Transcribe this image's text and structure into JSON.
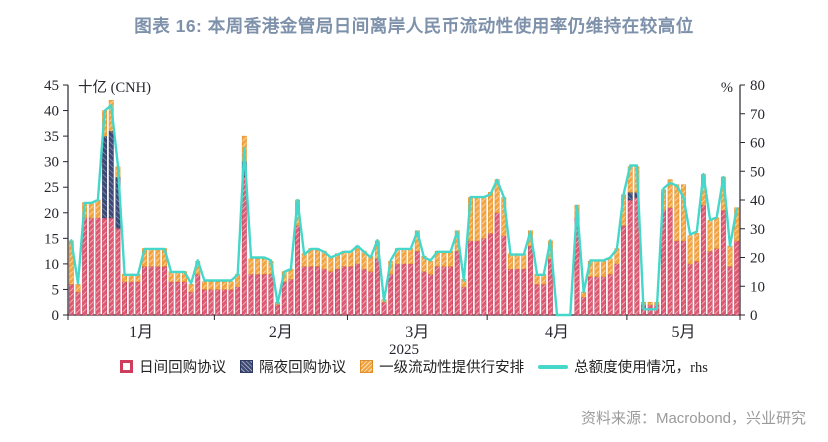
{
  "header": {
    "title": "图表 16: 本周香港金管局日间离岸人民币流动性使用率仍维持在较高位"
  },
  "source": {
    "text": "资料来源：Macrobond，兴业研究"
  },
  "legend": [
    {
      "label": "日间回购协议",
      "color": "#cf3d5c"
    },
    {
      "label": "隔夜回购协议",
      "color": "#3e4a75"
    },
    {
      "label": "一级流动性提供行安排",
      "color": "#f3a440"
    },
    {
      "label": "总额度使用情况，rhs",
      "color": "#45d7c9"
    }
  ],
  "chart_data": {
    "type": "bar",
    "subtype": "stacked-bars-with-line",
    "title": "图表 16: 本周香港金管局日间离岸人民币流动性使用率仍维持在较高位",
    "left_axis": {
      "label": "十亿 (CNH)",
      "min": 0,
      "max": 45,
      "ticks": [
        45,
        40,
        35,
        30,
        25,
        20,
        15,
        10,
        5,
        0
      ]
    },
    "right_axis": {
      "label": "%",
      "min": 0,
      "max": 80,
      "ticks": [
        80,
        70,
        60,
        50,
        40,
        30,
        20,
        10,
        0
      ]
    },
    "x_axis": {
      "year": "2025",
      "month_labels": [
        "1月",
        "2月",
        "3月",
        "4月",
        "5月"
      ],
      "month_counts": [
        22,
        20,
        21,
        21,
        17
      ]
    },
    "series": [
      {
        "name": "日间回购协议",
        "color": "#dd5a72",
        "values": [
          6,
          4.5,
          19,
          19,
          19,
          19,
          19,
          17,
          6.5,
          6.5,
          6.5,
          9.5,
          9.5,
          9.5,
          9.5,
          6.5,
          6.5,
          6.5,
          4.5,
          8,
          5,
          5,
          5,
          5,
          5,
          5.5,
          27,
          8,
          8,
          8,
          8,
          2,
          6.5,
          7,
          17.5,
          9.5,
          9.5,
          9.5,
          9,
          8.5,
          9,
          9.5,
          9.5,
          10,
          9,
          8.5,
          11,
          2.5,
          8,
          10,
          10,
          10,
          12.5,
          8.5,
          8,
          9.5,
          9.5,
          9.5,
          12.5,
          5.5,
          14.5,
          14.5,
          15,
          16,
          20,
          15.5,
          9,
          9,
          9,
          13.5,
          6,
          6,
          11,
          0,
          0,
          0,
          19,
          3.5,
          7.5,
          7.5,
          7.5,
          8,
          10,
          17.5,
          22.5,
          23,
          2,
          2,
          2,
          20.5,
          21,
          14.5,
          14.5,
          10,
          10.5,
          21.5,
          12.5,
          13,
          20.5,
          9.5,
          14.5
        ]
      },
      {
        "name": "隔夜回购协议",
        "color": "#3e4a75",
        "values": [
          0,
          0,
          0,
          0,
          0,
          16,
          17,
          10,
          0,
          0,
          0,
          0,
          0,
          0,
          0,
          0,
          0,
          0,
          0,
          0,
          0,
          0,
          0,
          0,
          0,
          0,
          3,
          0,
          0,
          0,
          0,
          0,
          0,
          0,
          0,
          0,
          0,
          0,
          0,
          0,
          0,
          0,
          0,
          0,
          0,
          0,
          0,
          0,
          0,
          0,
          0,
          0,
          0,
          0,
          0,
          0,
          0,
          0,
          0,
          0,
          0,
          0,
          0,
          0,
          0,
          0,
          0,
          0,
          0,
          0,
          0,
          0,
          0,
          0,
          0,
          0,
          0,
          0,
          0,
          0,
          0,
          0,
          0,
          0,
          1.5,
          1,
          0,
          0,
          0,
          0,
          0,
          0,
          0,
          0,
          0,
          0,
          0,
          0,
          0,
          0,
          0
        ]
      },
      {
        "name": "一级流动性提供行安排",
        "color": "#f3a440",
        "values": [
          8.5,
          1.5,
          3,
          3,
          3.5,
          5,
          6,
          2,
          1.5,
          1.5,
          1.5,
          3.5,
          3.5,
          3.5,
          3.5,
          2,
          2,
          2,
          1.5,
          2.5,
          1.5,
          1.5,
          1.5,
          1.5,
          1.5,
          2.5,
          5,
          3,
          3,
          3,
          2.5,
          0.5,
          2,
          2,
          5,
          2.5,
          3.5,
          3.5,
          3.5,
          3,
          3,
          3,
          3,
          3.5,
          3.5,
          3,
          3.5,
          0.5,
          2.5,
          3,
          3,
          3,
          4,
          3,
          2.5,
          3,
          3,
          3,
          4,
          1.5,
          8.5,
          8.5,
          8,
          8,
          6.5,
          7.5,
          3,
          3,
          3,
          3,
          2,
          2,
          3.5,
          0,
          0,
          0,
          2.5,
          1,
          3,
          3,
          3,
          3,
          3,
          6,
          5,
          5,
          0.5,
          0.5,
          0.5,
          4,
          5.5,
          11,
          11,
          5.5,
          5.5,
          6,
          6,
          6,
          6.5,
          4,
          6.5
        ]
      }
    ],
    "line": {
      "name": "总额度使用情况，rhs",
      "color": "#45d7c9",
      "axis": "right",
      "values": [
        26,
        11,
        39,
        39,
        40,
        71,
        73,
        52,
        14,
        14,
        14,
        23,
        23,
        23,
        23,
        15,
        15,
        15,
        11,
        19,
        12,
        12,
        12,
        12,
        12,
        14,
        58,
        20,
        20,
        20,
        19,
        4,
        15,
        16,
        40,
        21,
        23,
        23,
        22,
        20,
        21,
        22,
        22,
        24,
        22,
        20,
        26,
        5,
        19,
        23,
        23,
        23,
        29,
        20,
        19,
        22,
        22,
        22,
        29,
        12,
        41,
        41,
        41,
        42,
        47,
        41,
        21,
        21,
        21,
        29,
        14,
        14,
        26,
        0,
        0,
        0,
        38,
        8,
        19,
        19,
        19,
        20,
        23,
        42,
        52,
        52,
        2,
        2,
        2,
        44,
        46,
        45,
        41,
        28,
        29,
        49,
        33,
        34,
        48,
        24,
        37
      ]
    }
  }
}
